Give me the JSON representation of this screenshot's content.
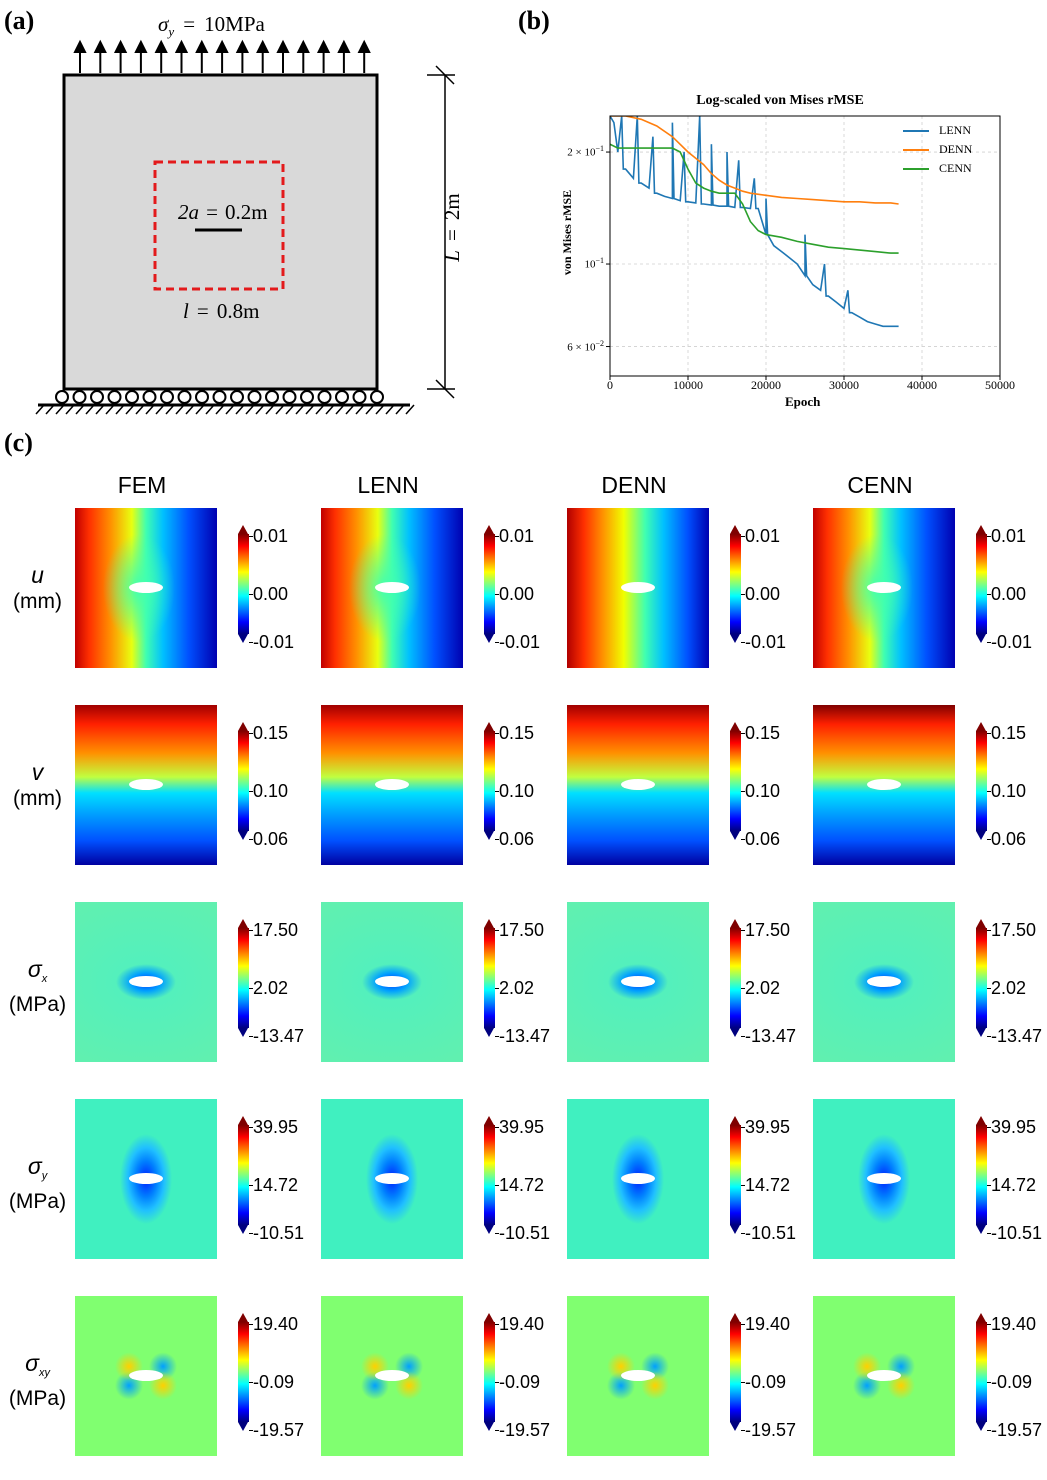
{
  "panels": {
    "a": "(a)",
    "b": "(b)",
    "c": "(c)"
  },
  "schematic": {
    "load_symbol": "σ",
    "load_sub": "y",
    "load_eq": "=",
    "load_value": "10MPa",
    "crack_sym": "2a",
    "crack_eq": "=",
    "crack_value": "0.2m",
    "region_sym": "l",
    "region_eq": "=",
    "region_value": "0.8m",
    "length_sym": "L",
    "length_eq": "=",
    "length_value": "2m",
    "colors": {
      "plate": "#d9d9d9",
      "dashed_box": "#e31a1c",
      "crack": "#000000"
    }
  },
  "chart_data": {
    "type": "line",
    "title": "Log-scaled von Mises rMSE",
    "xlabel": "Epoch",
    "ylabel": "von Mises rMSE",
    "yscale": "log",
    "xlim": [
      0,
      50000
    ],
    "ylim": [
      0.05,
      0.25
    ],
    "xticks": [
      "0",
      "10000",
      "20000",
      "30000",
      "40000",
      "50000"
    ],
    "xtick_values": [
      0,
      10000,
      20000,
      30000,
      40000,
      50000
    ],
    "yticks": [
      {
        "value": 0.2,
        "mantissa": "2 × 10",
        "exp": "−1"
      },
      {
        "value": 0.1,
        "mantissa": "10",
        "exp": "−1"
      },
      {
        "value": 0.06,
        "mantissa": "6 × 10",
        "exp": "−2"
      }
    ],
    "grid": true,
    "legend_position": "top-right",
    "series": [
      {
        "name": "LENN",
        "color": "#1f77b4",
        "x": [
          0,
          500,
          1000,
          2000,
          3000,
          4000,
          5000,
          6000,
          7000,
          8000,
          9000,
          10000,
          11000,
          12000,
          13000,
          14000,
          15000,
          16000,
          17000,
          18000,
          19000,
          20000,
          21000,
          22000,
          23000,
          24000,
          25000,
          26000,
          27000,
          28000,
          29000,
          30000,
          31000,
          32000,
          33000,
          34000,
          35000,
          36000,
          37000
        ],
        "y": [
          0.25,
          0.24,
          0.2,
          0.18,
          0.17,
          0.165,
          0.16,
          0.155,
          0.152,
          0.15,
          0.148,
          0.147,
          0.146,
          0.145,
          0.144,
          0.143,
          0.143,
          0.142,
          0.142,
          0.141,
          0.141,
          0.12,
          0.112,
          0.108,
          0.104,
          0.1,
          0.093,
          0.088,
          0.085,
          0.082,
          0.079,
          0.076,
          0.074,
          0.072,
          0.07,
          0.069,
          0.068,
          0.068,
          0.068
        ],
        "spikes": [
          [
            1500,
            0.25
          ],
          [
            3500,
            0.25
          ],
          [
            5500,
            0.22
          ],
          [
            8000,
            0.24
          ],
          [
            9500,
            0.2
          ],
          [
            11500,
            0.25
          ],
          [
            13000,
            0.21
          ],
          [
            15000,
            0.2
          ],
          [
            16500,
            0.19
          ],
          [
            18500,
            0.17
          ],
          [
            20000,
            0.15
          ],
          [
            25000,
            0.12
          ],
          [
            27500,
            0.1
          ],
          [
            30500,
            0.085
          ]
        ]
      },
      {
        "name": "DENN",
        "color": "#ff7f0e",
        "x": [
          0,
          2000,
          4000,
          6000,
          8000,
          10000,
          12000,
          13000,
          14000,
          15000,
          16000,
          17000,
          18000,
          20000,
          22000,
          24000,
          26000,
          28000,
          30000,
          32000,
          34000,
          36000,
          37000
        ],
        "y": [
          0.25,
          0.25,
          0.245,
          0.235,
          0.22,
          0.2,
          0.185,
          0.175,
          0.168,
          0.163,
          0.16,
          0.157,
          0.155,
          0.153,
          0.151,
          0.15,
          0.149,
          0.148,
          0.147,
          0.147,
          0.146,
          0.146,
          0.145
        ]
      },
      {
        "name": "CENN",
        "color": "#2ca02c",
        "x": [
          0,
          1000,
          2000,
          4000,
          6000,
          8000,
          9000,
          10000,
          11000,
          12000,
          13000,
          14000,
          15000,
          16000,
          17000,
          18000,
          19000,
          20000,
          22000,
          24000,
          26000,
          28000,
          30000,
          32000,
          34000,
          36000,
          37000
        ],
        "y": [
          0.21,
          0.205,
          0.205,
          0.205,
          0.205,
          0.205,
          0.2,
          0.18,
          0.165,
          0.16,
          0.157,
          0.155,
          0.155,
          0.155,
          0.145,
          0.13,
          0.123,
          0.12,
          0.118,
          0.115,
          0.113,
          0.111,
          0.11,
          0.109,
          0.108,
          0.107,
          0.107
        ]
      }
    ]
  },
  "grid": {
    "methods": [
      "FEM",
      "LENN",
      "DENN",
      "CENN"
    ],
    "rows": [
      {
        "id": "u",
        "sym": "u",
        "sub": "",
        "unit": "(mm)",
        "ticks": [
          "0.01",
          "0.00",
          "-0.01"
        ]
      },
      {
        "id": "v",
        "sym": "v",
        "sub": "",
        "unit": "(mm)",
        "ticks": [
          "0.15",
          "0.10",
          "0.06"
        ]
      },
      {
        "id": "sx",
        "sym": "σ",
        "sub": "x",
        "unit": "(MPa)",
        "ticks": [
          "17.50",
          "2.02",
          "-13.47"
        ]
      },
      {
        "id": "sy",
        "sym": "σ",
        "sub": "y",
        "unit": "(MPa)",
        "ticks": [
          "39.95",
          "14.72",
          "-10.51"
        ]
      },
      {
        "id": "sxy",
        "sym": "σ",
        "sub": "xy",
        "unit": "(MPa)",
        "ticks": [
          "19.40",
          "-0.09",
          "-19.57"
        ]
      }
    ]
  }
}
